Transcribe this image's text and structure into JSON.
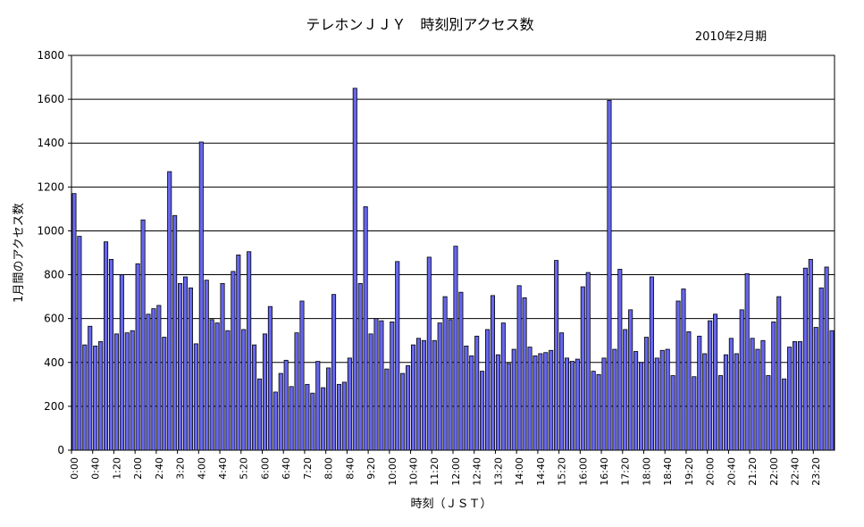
{
  "chart_data": {
    "type": "bar",
    "title": "テレホンＪＪＹ　時刻別アクセス数",
    "subtitle": "2010年2月期",
    "xlabel": "時刻（ＪＳＴ）",
    "ylabel": "1月間のアクセス数",
    "ylim": [
      0,
      1800
    ],
    "y_ticks": [
      0,
      200,
      400,
      600,
      800,
      1000,
      1200,
      1400,
      1600,
      1800
    ],
    "grid": true,
    "x_tick_labels": [
      "0:00",
      "0:40",
      "1:20",
      "2:00",
      "2:40",
      "3:20",
      "4:00",
      "4:40",
      "5:20",
      "6:00",
      "6:40",
      "7:20",
      "8:00",
      "8:40",
      "9:20",
      "10:00",
      "10:40",
      "11:20",
      "12:00",
      "12:40",
      "13:20",
      "14:00",
      "14:40",
      "15:20",
      "16:00",
      "16:40",
      "17:20",
      "18:00",
      "18:40",
      "19:20",
      "20:00",
      "20:40",
      "21:20",
      "22:00",
      "22:40",
      "23:20"
    ],
    "bar_color": "#6666ee",
    "values": [
      1170,
      975,
      480,
      565,
      475,
      495,
      950,
      870,
      530,
      800,
      535,
      545,
      850,
      1050,
      620,
      645,
      660,
      515,
      1270,
      1070,
      760,
      790,
      740,
      485,
      1405,
      775,
      595,
      580,
      760,
      545,
      815,
      890,
      550,
      905,
      480,
      325,
      530,
      655,
      265,
      350,
      410,
      290,
      535,
      680,
      300,
      260,
      405,
      285,
      375,
      710,
      300,
      310,
      420,
      1650,
      760,
      1110,
      530,
      600,
      590,
      370,
      585,
      860,
      350,
      385,
      480,
      510,
      500,
      880,
      500,
      580,
      700,
      595,
      930,
      720,
      475,
      430,
      520,
      360,
      550,
      705,
      435,
      580,
      395,
      460,
      750,
      695,
      470,
      430,
      440,
      445,
      455,
      865,
      535,
      420,
      405,
      415,
      745,
      810,
      360,
      345,
      420,
      1595,
      460,
      825,
      550,
      640,
      450,
      400,
      515,
      790,
      420,
      455,
      460,
      340,
      680,
      735,
      540,
      335,
      520,
      440,
      590,
      620,
      340,
      435,
      510,
      440,
      640,
      805,
      510,
      460,
      500,
      340,
      585,
      700,
      325,
      470,
      495,
      495,
      830,
      870,
      560,
      740,
      835,
      545
    ]
  }
}
